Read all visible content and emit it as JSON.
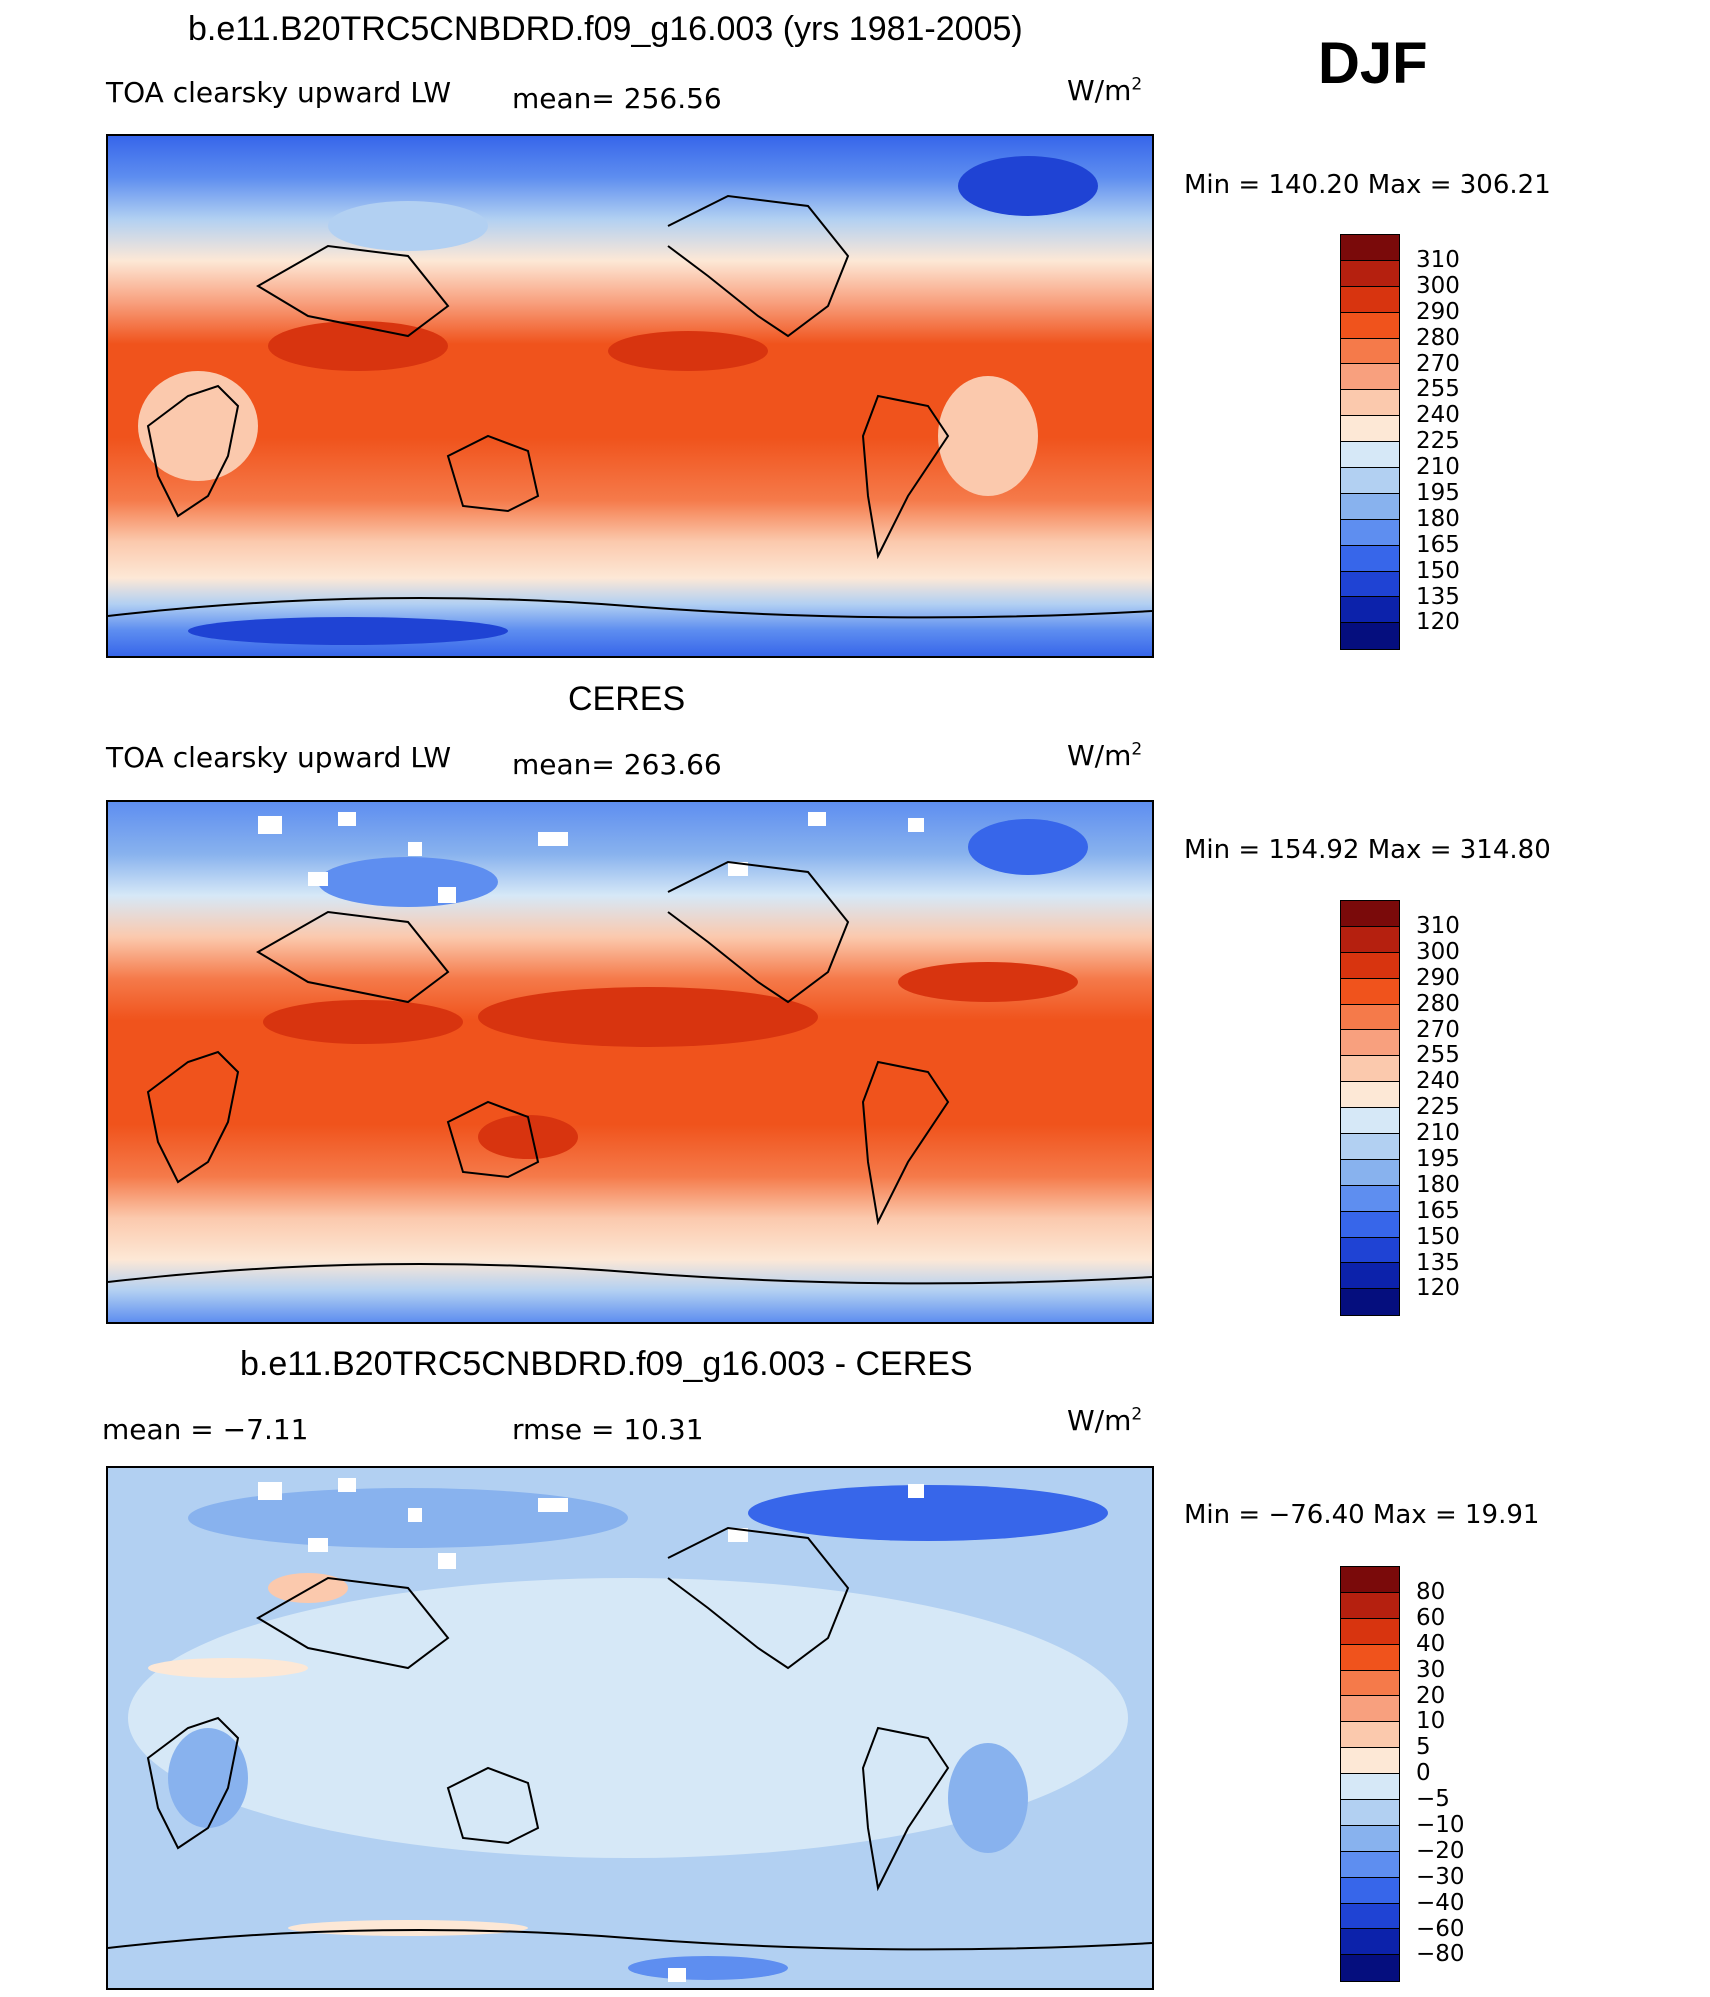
{
  "season": "DJF",
  "panels": [
    {
      "title": "b.e11.B20TRC5CNBDRD.f09_g16.003 (yrs 1981-2005)",
      "left_label": "TOA clearsky upward LW",
      "mid_label": "mean=  256.56",
      "units_base": "W/m",
      "units_exp": "2",
      "minmax": "Min  =  140.20  Max  =  306.21",
      "legend": [
        "310",
        "300",
        "290",
        "280",
        "270",
        "255",
        "240",
        "225",
        "210",
        "195",
        "180",
        "165",
        "150",
        "135",
        "120"
      ]
    },
    {
      "title": "CERES",
      "left_label": "TOA clearsky upward LW",
      "mid_label": "mean=  263.66",
      "units_base": "W/m",
      "units_exp": "2",
      "minmax": "Min  =  154.92  Max  =  314.80",
      "legend": [
        "310",
        "300",
        "290",
        "280",
        "270",
        "255",
        "240",
        "225",
        "210",
        "195",
        "180",
        "165",
        "150",
        "135",
        "120"
      ]
    },
    {
      "title": "b.e11.B20TRC5CNBDRD.f09_g16.003 - CERES",
      "left_label": "mean  =    −7.11",
      "mid_label": "rmse  =    10.31",
      "units_base": "W/m",
      "units_exp": "2",
      "minmax": "Min  =  −76.40  Max  =     19.91",
      "legend": [
        "80",
        "60",
        "40",
        "30",
        "20",
        "10",
        "5",
        "0",
        "−5",
        "−10",
        "−20",
        "−30",
        "−40",
        "−60",
        "−80"
      ]
    }
  ],
  "colors": {
    "scale": [
      "#7a0a0a",
      "#b5200f",
      "#d8340f",
      "#f0531c",
      "#f57a4a",
      "#f8a07e",
      "#fbc9ad",
      "#fde8d6",
      "#d6e8f7",
      "#b2d0f2",
      "#88b2ee",
      "#5e8ef0",
      "#3766ea",
      "#1f43d4",
      "#0c22ab",
      "#050e7e"
    ]
  }
}
